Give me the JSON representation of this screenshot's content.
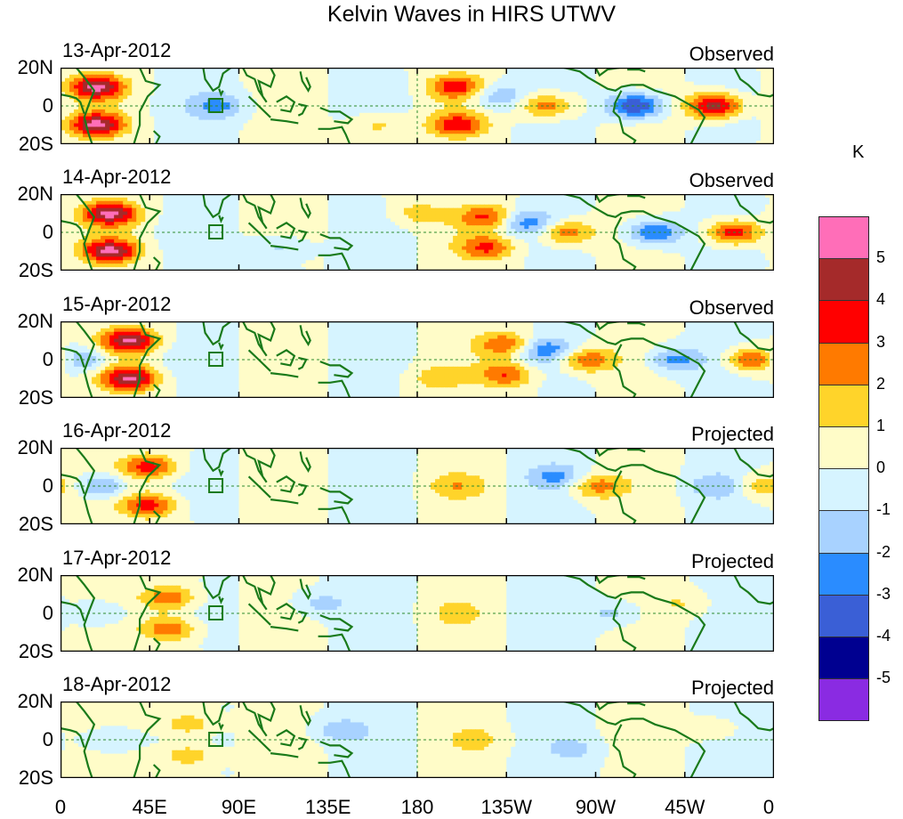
{
  "chart_data": {
    "type": "heatmap",
    "title": "Kelvin Waves in HIRS UTWV",
    "unit_label": "K",
    "xlabel": "",
    "ylabel": "",
    "x_range": [
      0,
      360
    ],
    "y_range": [
      -20,
      20
    ],
    "x_ticks": [
      "0",
      "45E",
      "90E",
      "135E",
      "180",
      "135W",
      "90W",
      "45W",
      "0"
    ],
    "y_ticks": [
      "20N",
      "0",
      "20S"
    ],
    "colorbar": {
      "levels": [
        5,
        4,
        3,
        2,
        1,
        0,
        -1,
        -2,
        -3,
        -4,
        -5
      ],
      "labels": [
        "5",
        "4",
        "3",
        "2",
        "1",
        "0",
        "-1",
        "-2",
        "-3",
        "-4",
        "-5"
      ],
      "colors": [
        "#ff6eb8",
        "#a52a2a",
        "#ff0000",
        "#ff7a00",
        "#ffd42a",
        "#fffcc8",
        "#d6f4ff",
        "#a8d2ff",
        "#2a8cff",
        "#3a5fd6",
        "#000090",
        "#8a2be2"
      ]
    },
    "panels": [
      {
        "date": "13-Apr-2012",
        "status": "Observed",
        "blobs": [
          {
            "lon": 18,
            "lat": 10,
            "amp": 5
          },
          {
            "lon": 18,
            "lat": -10,
            "amp": 5
          },
          {
            "lon": 200,
            "lat": 10,
            "amp": 3.5
          },
          {
            "lon": 200,
            "lat": -10,
            "amp": 3.5
          },
          {
            "lon": 245,
            "lat": 0,
            "amp": 3
          },
          {
            "lon": 330,
            "lat": 0,
            "amp": 5
          },
          {
            "lon": 290,
            "lat": 0,
            "amp": -4.5
          },
          {
            "lon": 220,
            "lat": 5,
            "amp": -2
          },
          {
            "lon": 80,
            "lat": 0,
            "amp": -2
          },
          {
            "lon": 160,
            "lat": -10,
            "amp": 1.5
          }
        ]
      },
      {
        "date": "14-Apr-2012",
        "status": "Observed",
        "blobs": [
          {
            "lon": 25,
            "lat": 10,
            "amp": 5
          },
          {
            "lon": 25,
            "lat": -10,
            "amp": 5
          },
          {
            "lon": 215,
            "lat": 8,
            "amp": 3
          },
          {
            "lon": 215,
            "lat": -8,
            "amp": 3
          },
          {
            "lon": 255,
            "lat": 0,
            "amp": 3
          },
          {
            "lon": 340,
            "lat": 0,
            "amp": 4
          },
          {
            "lon": 300,
            "lat": 0,
            "amp": -3.5
          },
          {
            "lon": 235,
            "lat": 5,
            "amp": -2.5
          },
          {
            "lon": 180,
            "lat": 10,
            "amp": 1.5
          },
          {
            "lon": 110,
            "lat": -8,
            "amp": -1.5
          }
        ]
      },
      {
        "date": "15-Apr-2012",
        "status": "Observed",
        "blobs": [
          {
            "lon": 35,
            "lat": 10,
            "amp": 5
          },
          {
            "lon": 35,
            "lat": -10,
            "amp": 5
          },
          {
            "lon": 225,
            "lat": 8,
            "amp": 3
          },
          {
            "lon": 225,
            "lat": -8,
            "amp": 3
          },
          {
            "lon": 265,
            "lat": 0,
            "amp": 3
          },
          {
            "lon": 350,
            "lat": 0,
            "amp": 3.5
          },
          {
            "lon": 310,
            "lat": 0,
            "amp": -2.5
          },
          {
            "lon": 245,
            "lat": 5,
            "amp": -2.5
          },
          {
            "lon": 10,
            "lat": 0,
            "amp": -2.5
          },
          {
            "lon": 190,
            "lat": -10,
            "amp": 1.5
          }
        ]
      },
      {
        "date": "16-Apr-2012",
        "status": "Projected",
        "blobs": [
          {
            "lon": 45,
            "lat": 10,
            "amp": 3.5
          },
          {
            "lon": 45,
            "lat": -10,
            "amp": 3.5
          },
          {
            "lon": 270,
            "lat": 0,
            "amp": 2.5
          },
          {
            "lon": 200,
            "lat": 0,
            "amp": 1.5
          },
          {
            "lon": 20,
            "lat": 0,
            "amp": -2.5
          },
          {
            "lon": 250,
            "lat": 5,
            "amp": -2
          },
          {
            "lon": 330,
            "lat": 0,
            "amp": -1.5
          },
          {
            "lon": 355,
            "lat": 0,
            "amp": 2
          }
        ]
      },
      {
        "date": "17-Apr-2012",
        "status": "Projected",
        "blobs": [
          {
            "lon": 55,
            "lat": 8,
            "amp": 3
          },
          {
            "lon": 55,
            "lat": -8,
            "amp": 3
          },
          {
            "lon": 20,
            "lat": 0,
            "amp": -1.5
          },
          {
            "lon": 130,
            "lat": 5,
            "amp": -1.5
          },
          {
            "lon": 280,
            "lat": 0,
            "amp": -1.5
          },
          {
            "lon": 200,
            "lat": 0,
            "amp": 1
          },
          {
            "lon": 315,
            "lat": 5,
            "amp": 1
          }
        ]
      },
      {
        "date": "18-Apr-2012",
        "status": "Projected",
        "blobs": [
          {
            "lon": 65,
            "lat": 8,
            "amp": 2
          },
          {
            "lon": 65,
            "lat": -8,
            "amp": 2
          },
          {
            "lon": 25,
            "lat": 0,
            "amp": -1.5
          },
          {
            "lon": 140,
            "lat": 5,
            "amp": -1.5
          },
          {
            "lon": 260,
            "lat": -5,
            "amp": -1
          },
          {
            "lon": 210,
            "lat": 0,
            "amp": 1
          },
          {
            "lon": 330,
            "lat": 5,
            "amp": 1
          }
        ]
      }
    ]
  }
}
